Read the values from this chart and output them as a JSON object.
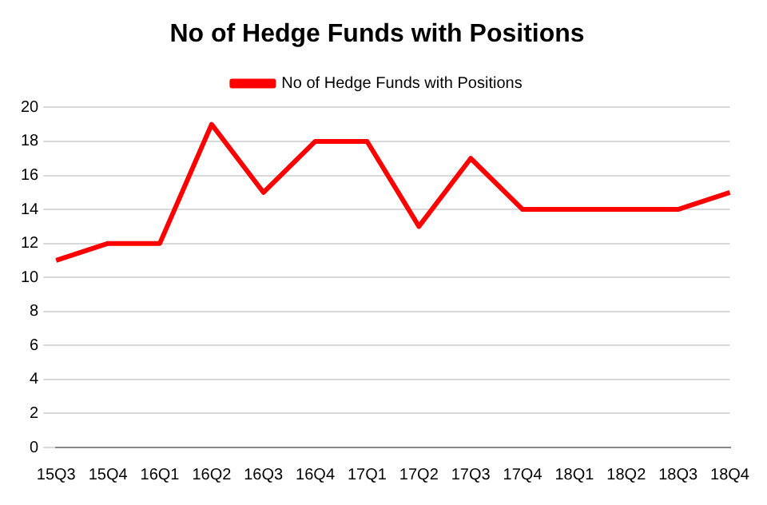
{
  "chart_data": {
    "type": "line",
    "title": "No of Hedge Funds with Positions",
    "categories": [
      "15Q3",
      "15Q4",
      "16Q1",
      "16Q2",
      "16Q3",
      "16Q4",
      "17Q1",
      "17Q2",
      "17Q3",
      "17Q4",
      "18Q1",
      "18Q2",
      "18Q3",
      "18Q4"
    ],
    "series": [
      {
        "name": "No of Hedge Funds with Positions",
        "color": "#ff0000",
        "values": [
          11,
          12,
          12,
          19,
          15,
          18,
          18,
          13,
          17,
          14,
          14,
          14,
          14,
          15
        ]
      }
    ],
    "ylim": [
      0,
      20
    ],
    "yticks": [
      0,
      2,
      4,
      6,
      8,
      10,
      12,
      14,
      16,
      18,
      20
    ],
    "grid": "y",
    "legend": "top",
    "marker": "none",
    "line_style": "solid"
  }
}
